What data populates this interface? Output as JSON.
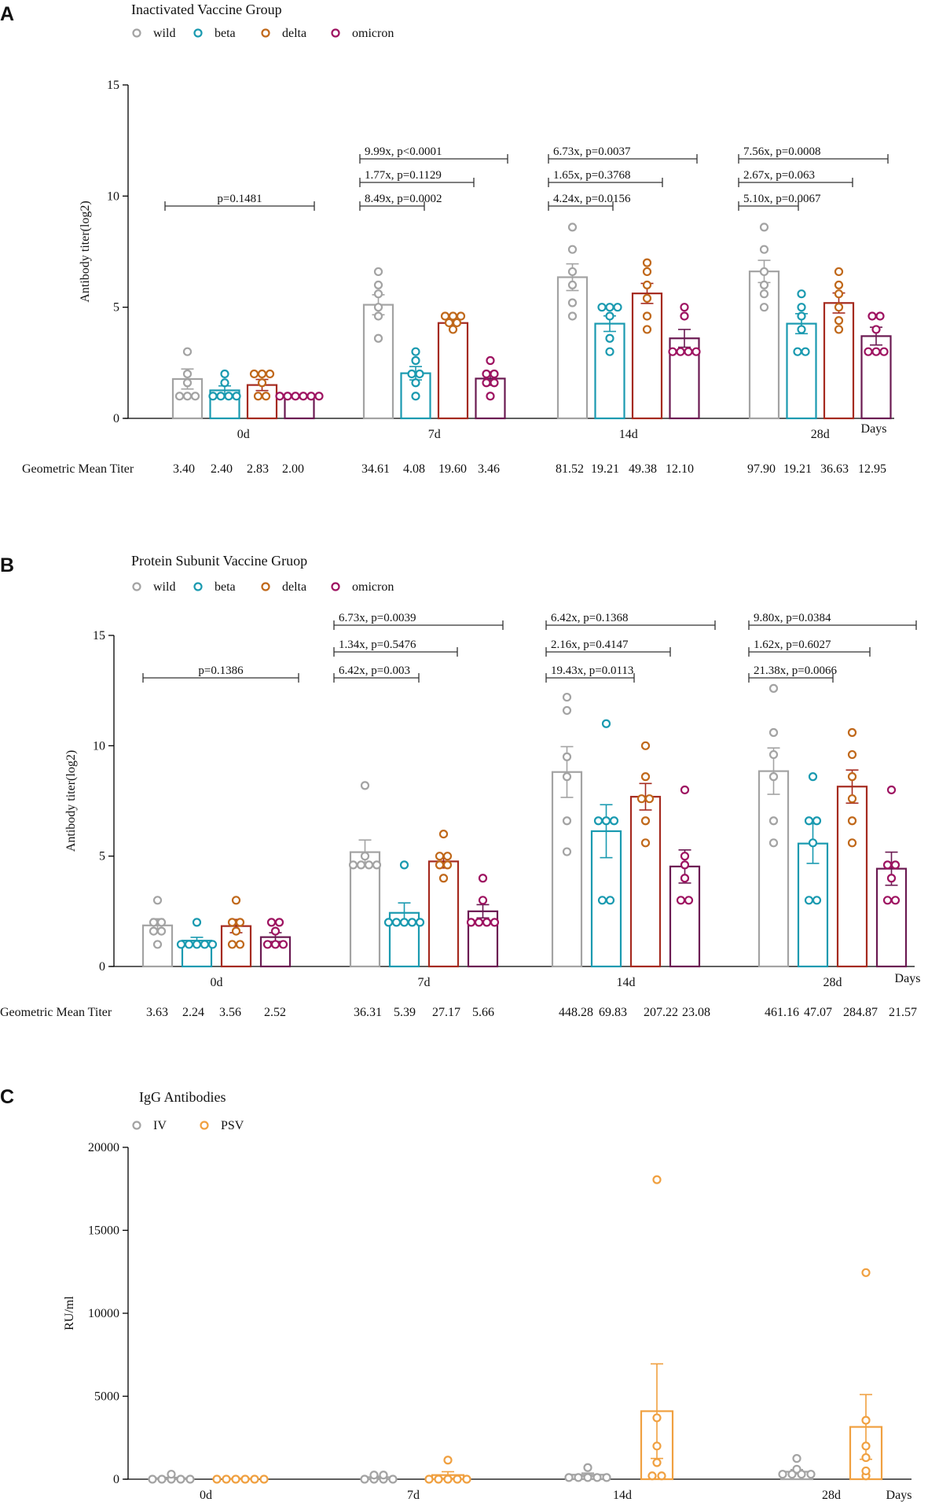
{
  "chart_data": [
    {
      "type": "bar",
      "panel_letter": "A",
      "title": "Inactivated Vaccine Group",
      "ylabel": "Antibody titer(log2)",
      "xlabel": "Days",
      "ylim": [
        0,
        15
      ],
      "yticks": [
        "0",
        "5",
        "10",
        "15"
      ],
      "categories": [
        "0d",
        "7d",
        "14d",
        "28d"
      ],
      "legend": [
        "wild",
        "beta",
        "delta",
        "omicron"
      ],
      "colors": {
        "wild": "#a3a3a3",
        "beta": "#1a9ab0",
        "delta": "#c0681a",
        "omicron": "#9e1361",
        "delta_bar": "#a52a1f",
        "omicron_bar": "#6b1a52"
      },
      "series": [
        {
          "name": "wild",
          "values": [
            1.77,
            5.11,
            6.35,
            6.61
          ],
          "errors": [
            0.45,
            0.45,
            0.6,
            0.5
          ],
          "points": [
            [
              1,
              1,
              1,
              1.6,
              2,
              3
            ],
            [
              3.6,
              4.6,
              5,
              5.6,
              6,
              6.6
            ],
            [
              4.6,
              5.2,
              6,
              6.6,
              7.6,
              8.6
            ],
            [
              5,
              5.6,
              6,
              6.6,
              7.6,
              8.6
            ]
          ]
        },
        {
          "name": "beta",
          "values": [
            1.26,
            2.03,
            4.26,
            4.26
          ],
          "errors": [
            0.2,
            0.3,
            0.35,
            0.45
          ],
          "points": [
            [
              1,
              1,
              1,
              1,
              1.6,
              2
            ],
            [
              1,
              1.6,
              2,
              2,
              2.6,
              3
            ],
            [
              3,
              3.6,
              4.6,
              5,
              5,
              5
            ],
            [
              3,
              3,
              4,
              4.6,
              5,
              5.6
            ]
          ]
        },
        {
          "name": "delta",
          "values": [
            1.5,
            4.29,
            5.62,
            5.19
          ],
          "errors": [
            0.25,
            0.12,
            0.45,
            0.45
          ],
          "points": [
            [
              1,
              1,
              1.6,
              2,
              2,
              2
            ],
            [
              4,
              4.3,
              4.3,
              4.6,
              4.6,
              4.6
            ],
            [
              4,
              4.6,
              5.4,
              6,
              6.6,
              7
            ],
            [
              4,
              4.4,
              5,
              5.6,
              6,
              6.6
            ]
          ]
        },
        {
          "name": "omicron",
          "values": [
            1.0,
            1.79,
            3.6,
            3.7
          ],
          "errors": [
            0.05,
            0.3,
            0.4,
            0.4
          ],
          "points": [
            [
              1,
              1,
              1,
              1,
              1,
              1
            ],
            [
              1,
              1.6,
              1.6,
              2,
              2,
              2.6
            ],
            [
              3,
              3,
              3,
              3,
              4.6,
              5
            ],
            [
              3,
              3,
              3,
              4,
              4.6,
              4.6
            ]
          ]
        }
      ],
      "comparisons": [
        {
          "group": 0,
          "level": 1,
          "text": "p=0.1481"
        },
        {
          "group": 1,
          "level": 1,
          "text": "8.49x, p=0.0002"
        },
        {
          "group": 1,
          "level": 2,
          "text": "1.77x, p=0.1129"
        },
        {
          "group": 1,
          "level": 3,
          "text": "9.99x, p<0.0001"
        },
        {
          "group": 2,
          "level": 1,
          "text": "4.24x, p=0.0156"
        },
        {
          "group": 2,
          "level": 2,
          "text": "1.65x, p=0.3768"
        },
        {
          "group": 2,
          "level": 3,
          "text": "6.73x, p=0.0037"
        },
        {
          "group": 3,
          "level": 1,
          "text": "5.10x, p=0.0067"
        },
        {
          "group": 3,
          "level": 2,
          "text": "2.67x, p=0.063"
        },
        {
          "group": 3,
          "level": 3,
          "text": "7.56x, p=0.0008"
        }
      ],
      "gmt_label": "Geometric Mean Titer",
      "gmt": [
        [
          "3.40",
          "2.40",
          "2.83",
          "2.00"
        ],
        [
          "34.61",
          "4.08",
          "19.60",
          "3.46"
        ],
        [
          "81.52",
          "19.21",
          "49.38",
          "12.10"
        ],
        [
          "97.90",
          "19.21",
          "36.63",
          "12.95"
        ]
      ]
    },
    {
      "type": "bar",
      "panel_letter": "B",
      "title": "Protein Subunit Vaccine Gruop",
      "ylabel": "Antibody titer(log2)",
      "xlabel": "Days",
      "ylim": [
        0,
        15
      ],
      "yticks": [
        "0",
        "5",
        "10",
        "15"
      ],
      "categories": [
        "0d",
        "7d",
        "14d",
        "28d"
      ],
      "legend": [
        "wild",
        "beta",
        "delta",
        "omicron"
      ],
      "colors": {
        "wild": "#a3a3a3",
        "beta": "#1a9ab0",
        "delta": "#c0681a",
        "omicron": "#9e1361",
        "delta_bar": "#a52a1f",
        "omicron_bar": "#6b1a52"
      },
      "series": [
        {
          "name": "wild",
          "values": [
            1.86,
            5.18,
            8.81,
            8.85
          ],
          "errors": [
            0.3,
            0.55,
            1.15,
            1.05
          ],
          "points": [
            [
              1,
              1.6,
              1.6,
              2,
              2,
              3
            ],
            [
              4.6,
              4.6,
              4.6,
              4.6,
              5,
              8.2
            ],
            [
              5.2,
              6.6,
              8.6,
              9.5,
              11.6,
              12.2
            ],
            [
              5.6,
              6.6,
              8.6,
              9.6,
              10.6,
              12.6
            ]
          ]
        },
        {
          "name": "beta",
          "values": [
            1.17,
            2.43,
            6.13,
            5.57
          ],
          "errors": [
            0.15,
            0.45,
            1.2,
            0.9
          ],
          "points": [
            [
              1,
              1,
              1,
              1,
              1,
              2
            ],
            [
              2,
              2,
              2,
              2,
              2,
              4.6
            ],
            [
              3,
              3,
              6.6,
              6.6,
              6.6,
              11
            ],
            [
              3,
              3,
              5.6,
              6.6,
              6.6,
              8.6
            ]
          ]
        },
        {
          "name": "delta",
          "values": [
            1.83,
            4.76,
            7.69,
            8.15
          ],
          "errors": [
            0.3,
            0.3,
            0.6,
            0.75
          ],
          "points": [
            [
              1,
              1,
              1.6,
              2,
              2,
              3
            ],
            [
              4,
              4.6,
              4.6,
              5,
              5,
              6
            ],
            [
              5.6,
              6.6,
              7.6,
              7.6,
              8.6,
              10
            ],
            [
              5.6,
              6.6,
              7.6,
              8.6,
              9.6,
              10.6
            ]
          ]
        },
        {
          "name": "omicron",
          "values": [
            1.33,
            2.5,
            4.53,
            4.43
          ],
          "errors": [
            0.2,
            0.3,
            0.75,
            0.75
          ],
          "points": [
            [
              1,
              1,
              1,
              1.6,
              2,
              2
            ],
            [
              2,
              2,
              2,
              2,
              3,
              4
            ],
            [
              3,
              3,
              4,
              4.6,
              5,
              8
            ],
            [
              3,
              3,
              4,
              4.6,
              4.6,
              8
            ]
          ]
        }
      ],
      "comparisons": [
        {
          "group": 0,
          "level": 1,
          "text": "p=0.1386"
        },
        {
          "group": 1,
          "level": 1,
          "text": "6.42x, p=0.003"
        },
        {
          "group": 1,
          "level": 2,
          "text": "1.34x, p=0.5476"
        },
        {
          "group": 1,
          "level": 3,
          "text": "6.73x, p=0.0039"
        },
        {
          "group": 2,
          "level": 1,
          "text": "19.43x, p=0.0113"
        },
        {
          "group": 2,
          "level": 2,
          "text": "2.16x, p=0.4147"
        },
        {
          "group": 2,
          "level": 3,
          "text": "6.42x, p=0.1368"
        },
        {
          "group": 3,
          "level": 1,
          "text": "21.38x, p=0.0066"
        },
        {
          "group": 3,
          "level": 2,
          "text": "1.62x, p=0.6027"
        },
        {
          "group": 3,
          "level": 3,
          "text": "9.80x, p=0.0384"
        }
      ],
      "gmt_label": "Geometric Mean Titer",
      "gmt": [
        [
          "3.63",
          "2.24",
          "3.56",
          "2.52"
        ],
        [
          "36.31",
          "5.39",
          "27.17",
          "5.66"
        ],
        [
          "448.28",
          "69.83",
          "207.22",
          "23.08"
        ],
        [
          "461.16",
          "47.07",
          "284.87",
          "21.57"
        ]
      ]
    },
    {
      "type": "bar",
      "panel_letter": "C",
      "title": "IgG Antibodies",
      "ylabel": "RU/ml",
      "xlabel": "Days",
      "ylim": [
        0,
        20000
      ],
      "yticks": [
        "0",
        "5000",
        "10000",
        "15000",
        "20000"
      ],
      "categories": [
        "0d",
        "7d",
        "14d",
        "28d"
      ],
      "legend": [
        "IV",
        "PSV"
      ],
      "colors": {
        "IV": "#a3a3a3",
        "PSV": "#f0a040"
      },
      "series": [
        {
          "name": "IV",
          "values": [
            60,
            120,
            270,
            450
          ],
          "errors": [
            50,
            60,
            100,
            130
          ],
          "points": [
            [
              0,
              0,
              0,
              0,
              100,
              300
            ],
            [
              0,
              100,
              150,
              200,
              250,
              350
            ],
            [
              100,
              200,
              250,
              300,
              300,
              700
            ],
            [
              300,
              350,
              400,
              500,
              600,
              1250
            ]
          ]
        },
        {
          "name": "PSV",
          "values": [
            30,
            250,
            4100,
            3150
          ],
          "errors": [
            30,
            200,
            2850,
            1950
          ],
          "points": [
            [
              0,
              0,
              0,
              0,
              0,
              0
            ],
            [
              0,
              0,
              0,
              0,
              200,
              1150
            ],
            [
              200,
              300,
              1000,
              2000,
              3700,
              18050
            ],
            [
              200,
              500,
              1300,
              2000,
              3550,
              12450
            ]
          ]
        }
      ]
    }
  ]
}
